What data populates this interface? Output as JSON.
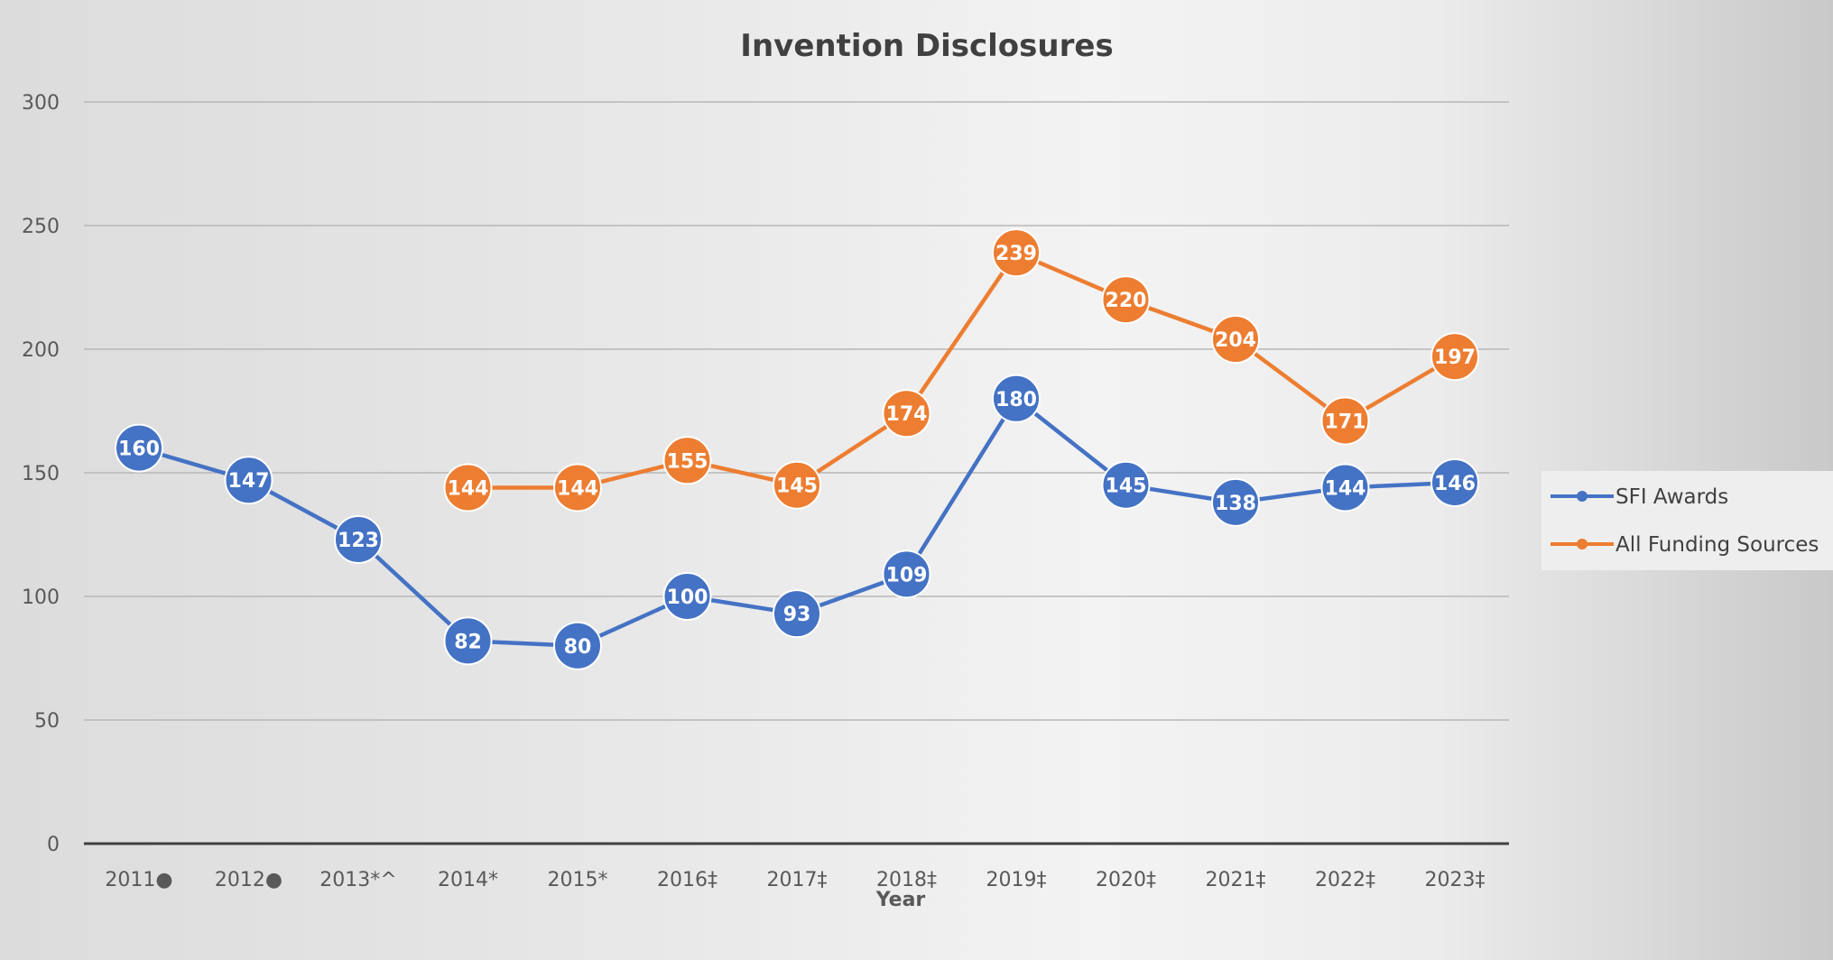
{
  "chart_data": {
    "type": "line",
    "title": "Invention Disclosures",
    "xlabel": "Year",
    "ylabel": "",
    "ylim": [
      0,
      300
    ],
    "yticks": [
      0,
      50,
      100,
      150,
      200,
      250,
      300
    ],
    "grid": true,
    "legend_position": "right",
    "categories": [
      "2011●",
      "2012●",
      "2013*^",
      "2014*",
      "2015*",
      "2016‡",
      "2017‡",
      "2018‡",
      "2019‡",
      "2020‡",
      "2021‡",
      "2022‡",
      "2023‡"
    ],
    "series": [
      {
        "name": "SFI Awards",
        "color": "#4472C4",
        "values": [
          160,
          147,
          123,
          82,
          80,
          100,
          93,
          109,
          180,
          145,
          138,
          144,
          146
        ]
      },
      {
        "name": "All Funding Sources",
        "color": "#ED7D31",
        "values": [
          null,
          null,
          null,
          144,
          144,
          155,
          145,
          174,
          239,
          220,
          204,
          171,
          197
        ]
      }
    ]
  }
}
